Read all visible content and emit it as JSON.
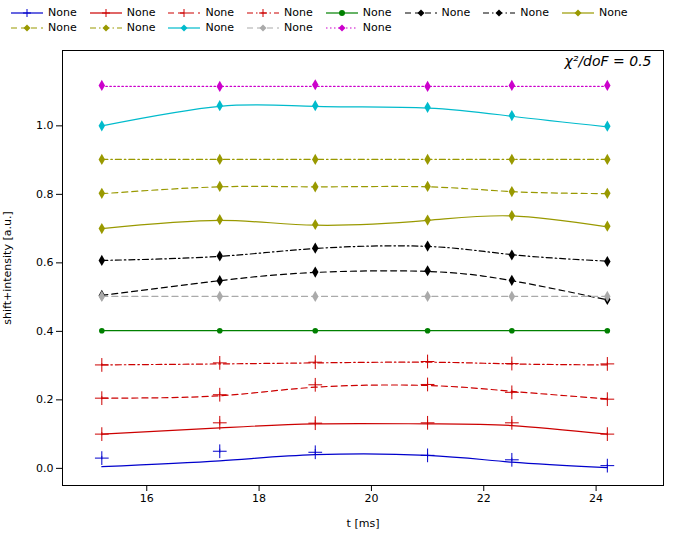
{
  "chart_data": {
    "type": "line",
    "xlabel": "t [ms]",
    "ylabel": "shift+intensity [a.u.]",
    "annotation": "χ²/doF = 0.5",
    "xlim": [
      14.5,
      25.2
    ],
    "ylim": [
      -0.05,
      1.22
    ],
    "xticks": [
      16,
      18,
      20,
      22,
      24
    ],
    "yticks": [
      {
        "value": 0.0,
        "label": "0.0"
      },
      0.2,
      0.4,
      0.6,
      0.8,
      {
        "value": 1.0,
        "label": "1.0"
      }
    ],
    "grid": false,
    "legend": "upper left",
    "x": [
      15.2,
      17.3,
      19.0,
      21.0,
      22.5,
      24.2
    ],
    "series": [
      {
        "name": "None",
        "color": "#0000cc",
        "line_style": "solid",
        "marker": "plus",
        "line_values": [
          0.005,
          0.022,
          0.04,
          0.038,
          0.018,
          0.002
        ],
        "values": [
          0.03,
          0.05,
          0.047,
          0.038,
          0.025,
          0.008
        ],
        "errors": [
          0.005,
          0.006,
          0.008,
          0.006,
          0.005,
          0.004
        ]
      },
      {
        "name": "None",
        "color": "#cc0000",
        "line_style": "solid",
        "marker": "plus",
        "line_values": [
          0.1,
          0.118,
          0.13,
          0.13,
          0.125,
          0.1
        ],
        "values": [
          0.1,
          0.133,
          0.132,
          0.133,
          0.133,
          0.1
        ],
        "errors": [
          0.005,
          0.008,
          0.008,
          0.008,
          0.008,
          0.005
        ]
      },
      {
        "name": "None",
        "color": "#cc0000",
        "line_style": "dashed",
        "marker": "plus",
        "line_values": [
          0.205,
          0.212,
          0.237,
          0.242,
          0.225,
          0.203
        ],
        "values": [
          0.205,
          0.215,
          0.244,
          0.245,
          0.222,
          0.202
        ],
        "errors": [
          0.005,
          0.007,
          0.007,
          0.007,
          0.007,
          0.005
        ]
      },
      {
        "name": "None",
        "color": "#cc0000",
        "line_style": "dashdot",
        "marker": "plus",
        "line_values": [
          0.302,
          0.305,
          0.308,
          0.31,
          0.305,
          0.302
        ],
        "values": [
          0.302,
          0.308,
          0.31,
          0.312,
          0.306,
          0.305
        ],
        "errors": [
          0.004,
          0.005,
          0.005,
          0.005,
          0.005,
          0.004
        ]
      },
      {
        "name": "None",
        "color": "#008000",
        "line_style": "solid",
        "marker": "circle",
        "line_values": [
          0.402,
          0.402,
          0.402,
          0.402,
          0.402,
          0.402
        ],
        "values": [
          0.402,
          0.402,
          0.402,
          0.402,
          0.402,
          0.402
        ],
        "errors": [
          0.003,
          0.003,
          0.003,
          0.003,
          0.003,
          0.003
        ]
      },
      {
        "name": "None",
        "color": "#000000",
        "line_style": "dashed",
        "marker": "diamond",
        "line_values": [
          0.505,
          0.548,
          0.572,
          0.575,
          0.548,
          0.492
        ],
        "values": [
          0.505,
          0.548,
          0.573,
          0.577,
          0.549,
          0.493
        ],
        "errors": [
          0.005,
          0.007,
          0.008,
          0.008,
          0.007,
          0.005
        ]
      },
      {
        "name": "None",
        "color": "#000000",
        "line_style": "dashdot",
        "marker": "diamond",
        "line_values": [
          0.607,
          0.619,
          0.642,
          0.648,
          0.624,
          0.605
        ],
        "values": [
          0.607,
          0.62,
          0.643,
          0.649,
          0.623,
          0.604
        ],
        "errors": [
          0.005,
          0.006,
          0.006,
          0.006,
          0.006,
          0.005
        ]
      },
      {
        "name": "None",
        "color": "#999900",
        "line_style": "solid",
        "marker": "diamond",
        "line_values": [
          0.7,
          0.724,
          0.71,
          0.724,
          0.737,
          0.705
        ],
        "values": [
          0.7,
          0.726,
          0.712,
          0.725,
          0.738,
          0.707
        ],
        "errors": [
          0.007,
          0.008,
          0.007,
          0.008,
          0.008,
          0.007
        ]
      },
      {
        "name": "None",
        "color": "#999900",
        "line_style": "dashed",
        "marker": "diamond",
        "line_values": [
          0.802,
          0.822,
          0.822,
          0.822,
          0.808,
          0.802
        ],
        "values": [
          0.803,
          0.823,
          0.822,
          0.823,
          0.808,
          0.803
        ],
        "errors": [
          0.005,
          0.006,
          0.006,
          0.006,
          0.006,
          0.005
        ]
      },
      {
        "name": "None",
        "color": "#999900",
        "line_style": "dashdot",
        "marker": "diamond",
        "line_values": [
          0.902,
          0.902,
          0.902,
          0.902,
          0.902,
          0.902
        ],
        "values": [
          0.902,
          0.902,
          0.902,
          0.902,
          0.902,
          0.902
        ],
        "errors": [
          0.004,
          0.004,
          0.004,
          0.004,
          0.004,
          0.004
        ]
      },
      {
        "name": "None",
        "color": "#00bbcc",
        "line_style": "solid",
        "marker": "diamond",
        "line_values": [
          1.0,
          1.057,
          1.057,
          1.052,
          1.028,
          0.997
        ],
        "values": [
          1.0,
          1.059,
          1.059,
          1.054,
          1.03,
          0.999
        ],
        "errors": [
          0.007,
          0.008,
          0.008,
          0.008,
          0.007,
          0.007
        ]
      },
      {
        "name": "None",
        "color": "#aaaaaa",
        "line_style": "dashed",
        "marker": "diamond",
        "line_values": [
          0.502,
          0.502,
          0.502,
          0.502,
          0.502,
          0.502
        ],
        "values": [
          0.502,
          0.502,
          0.502,
          0.502,
          0.502,
          0.502
        ],
        "errors": [
          0.003,
          0.003,
          0.003,
          0.003,
          0.003,
          0.003
        ]
      },
      {
        "name": "None",
        "color": "#cc00cc",
        "line_style": "dotted",
        "marker": "diamond",
        "line_values": [
          1.115,
          1.115,
          1.115,
          1.115,
          1.115,
          1.115
        ],
        "values": [
          1.118,
          1.115,
          1.12,
          1.115,
          1.118,
          1.118
        ],
        "errors": [
          0.005,
          0.005,
          0.005,
          0.005,
          0.005,
          0.005
        ]
      }
    ]
  }
}
